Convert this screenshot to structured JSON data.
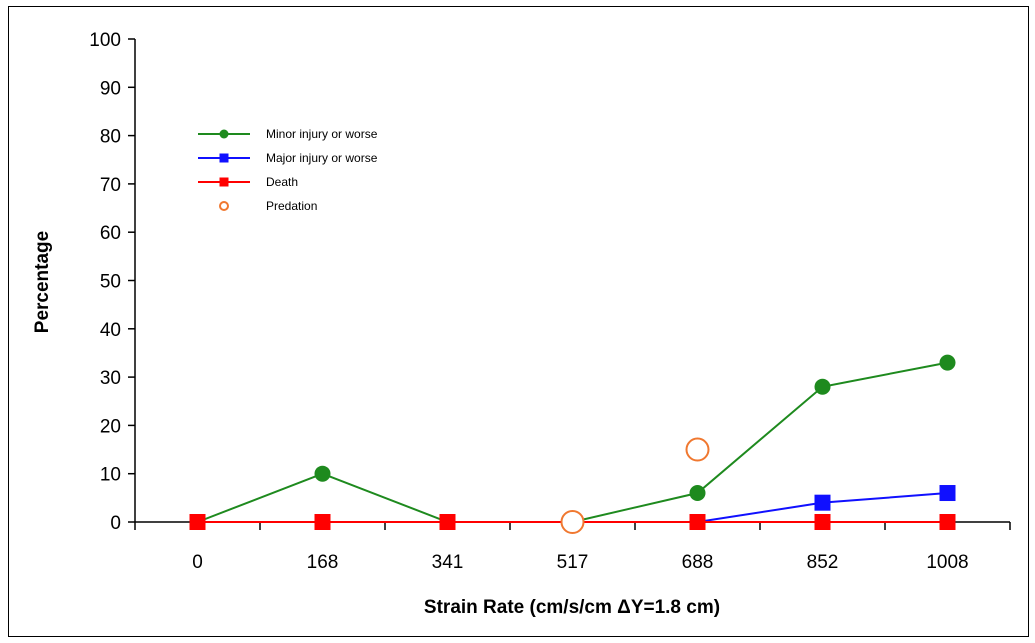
{
  "chart_data": {
    "type": "line",
    "title": "",
    "xlabel": "Strain Rate (cm/s/cm ΔY=1.8 cm)",
    "ylabel": "Percentage",
    "categories": [
      "0",
      "168",
      "341",
      "517",
      "688",
      "852",
      "1008"
    ],
    "ylim": [
      0,
      100
    ],
    "yticks": [
      0,
      10,
      20,
      30,
      40,
      50,
      60,
      70,
      80,
      90,
      100
    ],
    "grid": false,
    "legend_position": "upper-left",
    "series": [
      {
        "name": "Minor injury or worse",
        "color": "#1e8a1e",
        "marker": "circle",
        "line": true,
        "values": [
          0,
          10,
          0,
          0,
          6,
          28,
          33
        ]
      },
      {
        "name": "Major injury or worse",
        "color": "#1010ff",
        "marker": "square",
        "line": true,
        "values": [
          0,
          0,
          0,
          0,
          0,
          4,
          6
        ]
      },
      {
        "name": "Death",
        "color": "#ff0000",
        "marker": "square",
        "line": true,
        "values": [
          0,
          0,
          0,
          0,
          0,
          0,
          0
        ]
      },
      {
        "name": "Predation",
        "color": "#f07830",
        "marker": "open-circle",
        "line": false,
        "points": [
          {
            "category": "517",
            "value": 0
          },
          {
            "category": "688",
            "value": 15
          }
        ]
      }
    ]
  }
}
